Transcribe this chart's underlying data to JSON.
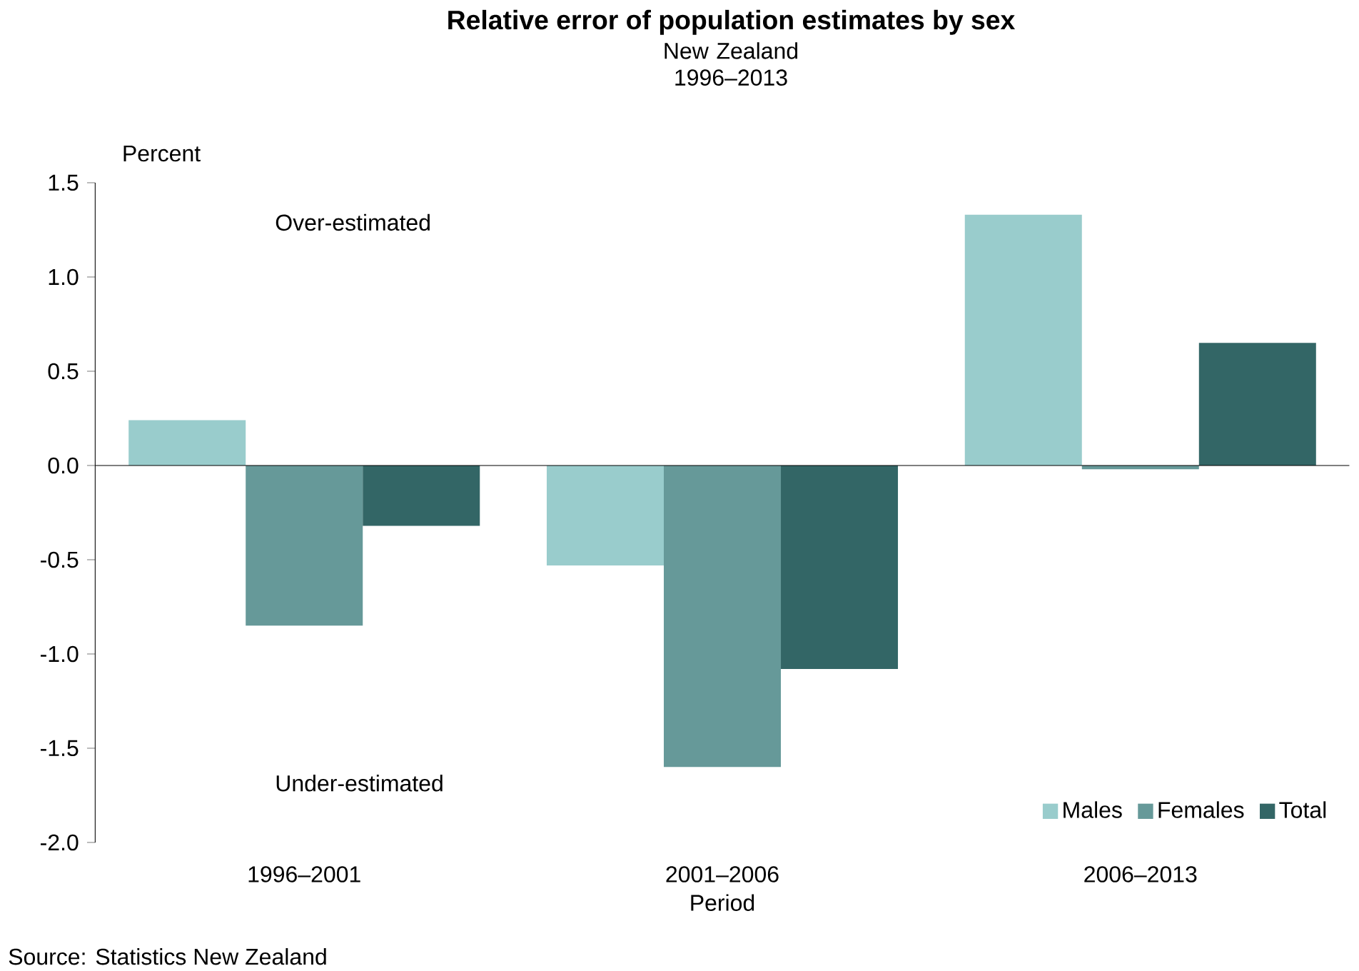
{
  "chart_data": {
    "type": "bar",
    "title": "Relative error of population estimates by sex",
    "subtitle": "New Zealand 1996–2013",
    "xlabel": "Period",
    "ylabel": "Percent",
    "categories": [
      "1996–2001",
      "2001–2006",
      "2006–2013"
    ],
    "series": [
      {
        "name": "Males",
        "color": "#99cccc",
        "values": [
          0.24,
          -0.53,
          1.33
        ]
      },
      {
        "name": "Females",
        "color": "#669999",
        "values": [
          -0.85,
          -1.6,
          -0.02
        ]
      },
      {
        "name": "Total",
        "color": "#336666",
        "values": [
          -0.32,
          -1.08,
          0.65
        ]
      }
    ],
    "ylim": [
      -2.0,
      1.5
    ],
    "yticks": [
      {
        "value": -2,
        "label": "-2.0"
      },
      {
        "value": -1.5,
        "label": "-1.5"
      },
      {
        "value": -1,
        "label": "-1.0"
      },
      {
        "value": -0.5,
        "label": "-0.5"
      },
      {
        "value": 0,
        "label": "0.0"
      },
      {
        "value": 0.5,
        "label": "0.5"
      },
      {
        "value": 1,
        "label": "1.0"
      },
      {
        "value": 1.5,
        "label": "1.5"
      }
    ],
    "legend": "bottom right",
    "annotations": [
      "Over-estimated",
      "Under-estimated",
      "Source: Statistics New Zealand"
    ]
  }
}
